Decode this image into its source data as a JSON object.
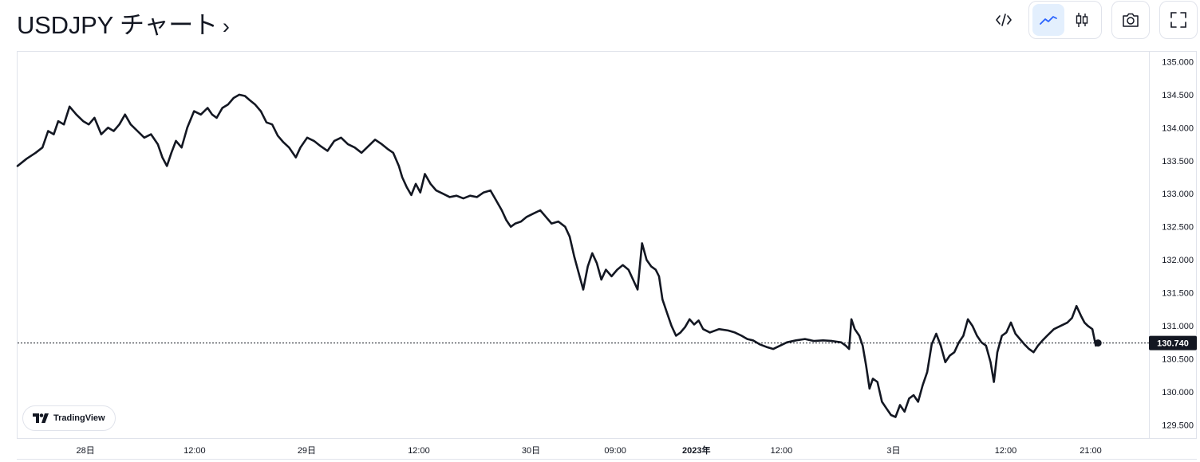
{
  "header": {
    "title": "USDJPY チャート",
    "title_chevron": "›"
  },
  "toolbar": {
    "embed_icon": "code-icon",
    "line_icon": "line-chart-icon",
    "candle_icon": "candlestick-icon",
    "snapshot_icon": "camera-icon",
    "fullscreen_icon": "fullscreen-icon",
    "active_chart_type": "line",
    "accent": "#2962ff"
  },
  "watermark": {
    "text": "TradingView"
  },
  "chart_data": {
    "type": "line",
    "title": "",
    "xlabel": "",
    "ylabel": "",
    "ylim": [
      129.3,
      135.15
    ],
    "line_color": "#131722",
    "grid": false,
    "y_axis": "right",
    "y_ticks": [
      "135.000",
      "134.500",
      "134.000",
      "133.500",
      "133.000",
      "132.500",
      "132.000",
      "131.500",
      "131.000",
      "130.500",
      "130.000",
      "129.500"
    ],
    "x_ticks": [
      {
        "label": "28日",
        "t": 0.06
      },
      {
        "label": "12:00",
        "t": 0.1565
      },
      {
        "label": "29日",
        "t": 0.2556
      },
      {
        "label": "12:00",
        "t": 0.3547
      },
      {
        "label": "30日",
        "t": 0.4538
      },
      {
        "label": "09:00",
        "t": 0.5283
      },
      {
        "label": "2023年",
        "t": 0.6,
        "bold": true
      },
      {
        "label": "12:00",
        "t": 0.6752
      },
      {
        "label": "3日",
        "t": 0.7743
      },
      {
        "label": "12:00",
        "t": 0.8734
      },
      {
        "label": "21:00",
        "t": 0.9485
      }
    ],
    "last_value": 130.74,
    "last_value_label": "130.740",
    "series": [
      {
        "points": [
          [
            0.0,
            133.42
          ],
          [
            0.008,
            133.53
          ],
          [
            0.016,
            133.62
          ],
          [
            0.022,
            133.7
          ],
          [
            0.027,
            133.95
          ],
          [
            0.032,
            133.9
          ],
          [
            0.036,
            134.1
          ],
          [
            0.041,
            134.05
          ],
          [
            0.046,
            134.32
          ],
          [
            0.052,
            134.2
          ],
          [
            0.058,
            134.1
          ],
          [
            0.063,
            134.05
          ],
          [
            0.068,
            134.15
          ],
          [
            0.074,
            133.9
          ],
          [
            0.08,
            134.0
          ],
          [
            0.085,
            133.95
          ],
          [
            0.09,
            134.05
          ],
          [
            0.095,
            134.2
          ],
          [
            0.1,
            134.05
          ],
          [
            0.106,
            133.95
          ],
          [
            0.112,
            133.85
          ],
          [
            0.118,
            133.9
          ],
          [
            0.124,
            133.75
          ],
          [
            0.128,
            133.55
          ],
          [
            0.132,
            133.42
          ],
          [
            0.136,
            133.62
          ],
          [
            0.14,
            133.8
          ],
          [
            0.145,
            133.7
          ],
          [
            0.15,
            134.0
          ],
          [
            0.156,
            134.25
          ],
          [
            0.162,
            134.2
          ],
          [
            0.168,
            134.3
          ],
          [
            0.172,
            134.2
          ],
          [
            0.176,
            134.15
          ],
          [
            0.181,
            134.3
          ],
          [
            0.186,
            134.35
          ],
          [
            0.191,
            134.45
          ],
          [
            0.196,
            134.5
          ],
          [
            0.201,
            134.48
          ],
          [
            0.205,
            134.42
          ],
          [
            0.21,
            134.35
          ],
          [
            0.215,
            134.25
          ],
          [
            0.22,
            134.08
          ],
          [
            0.225,
            134.05
          ],
          [
            0.23,
            133.88
          ],
          [
            0.235,
            133.78
          ],
          [
            0.24,
            133.7
          ],
          [
            0.246,
            133.55
          ],
          [
            0.25,
            133.7
          ],
          [
            0.256,
            133.85
          ],
          [
            0.262,
            133.8
          ],
          [
            0.268,
            133.72
          ],
          [
            0.274,
            133.65
          ],
          [
            0.28,
            133.8
          ],
          [
            0.286,
            133.85
          ],
          [
            0.292,
            133.75
          ],
          [
            0.298,
            133.7
          ],
          [
            0.304,
            133.62
          ],
          [
            0.31,
            133.72
          ],
          [
            0.316,
            133.82
          ],
          [
            0.322,
            133.75
          ],
          [
            0.327,
            133.68
          ],
          [
            0.332,
            133.62
          ],
          [
            0.337,
            133.42
          ],
          [
            0.34,
            133.25
          ],
          [
            0.344,
            133.1
          ],
          [
            0.348,
            132.98
          ],
          [
            0.352,
            133.15
          ],
          [
            0.356,
            133.02
          ],
          [
            0.36,
            133.3
          ],
          [
            0.365,
            133.15
          ],
          [
            0.37,
            133.05
          ],
          [
            0.376,
            133.0
          ],
          [
            0.382,
            132.95
          ],
          [
            0.388,
            132.97
          ],
          [
            0.394,
            132.93
          ],
          [
            0.4,
            132.97
          ],
          [
            0.406,
            132.95
          ],
          [
            0.412,
            133.02
          ],
          [
            0.418,
            133.05
          ],
          [
            0.423,
            132.9
          ],
          [
            0.428,
            132.75
          ],
          [
            0.432,
            132.6
          ],
          [
            0.436,
            132.5
          ],
          [
            0.44,
            132.55
          ],
          [
            0.445,
            132.58
          ],
          [
            0.45,
            132.65
          ],
          [
            0.456,
            132.7
          ],
          [
            0.462,
            132.75
          ],
          [
            0.467,
            132.65
          ],
          [
            0.472,
            132.55
          ],
          [
            0.478,
            132.58
          ],
          [
            0.484,
            132.5
          ],
          [
            0.488,
            132.35
          ],
          [
            0.492,
            132.05
          ],
          [
            0.496,
            131.8
          ],
          [
            0.5,
            131.55
          ],
          [
            0.504,
            131.9
          ],
          [
            0.508,
            132.1
          ],
          [
            0.512,
            131.95
          ],
          [
            0.516,
            131.7
          ],
          [
            0.52,
            131.85
          ],
          [
            0.525,
            131.75
          ],
          [
            0.53,
            131.85
          ],
          [
            0.535,
            131.92
          ],
          [
            0.54,
            131.85
          ],
          [
            0.544,
            131.7
          ],
          [
            0.548,
            131.55
          ],
          [
            0.552,
            132.25
          ],
          [
            0.556,
            132.0
          ],
          [
            0.56,
            131.9
          ],
          [
            0.564,
            131.85
          ],
          [
            0.567,
            131.75
          ],
          [
            0.57,
            131.4
          ],
          [
            0.574,
            131.2
          ],
          [
            0.578,
            131.0
          ],
          [
            0.582,
            130.85
          ],
          [
            0.586,
            130.9
          ],
          [
            0.59,
            130.98
          ],
          [
            0.594,
            131.1
          ],
          [
            0.598,
            131.02
          ],
          [
            0.602,
            131.08
          ],
          [
            0.606,
            130.95
          ],
          [
            0.612,
            130.9
          ],
          [
            0.62,
            130.95
          ],
          [
            0.628,
            130.93
          ],
          [
            0.634,
            130.9
          ],
          [
            0.64,
            130.85
          ],
          [
            0.645,
            130.8
          ],
          [
            0.65,
            130.78
          ],
          [
            0.656,
            130.72
          ],
          [
            0.662,
            130.68
          ],
          [
            0.668,
            130.65
          ],
          [
            0.674,
            130.7
          ],
          [
            0.68,
            130.75
          ],
          [
            0.688,
            130.78
          ],
          [
            0.696,
            130.8
          ],
          [
            0.704,
            130.77
          ],
          [
            0.712,
            130.78
          ],
          [
            0.72,
            130.77
          ],
          [
            0.728,
            130.75
          ],
          [
            0.732,
            130.7
          ],
          [
            0.735,
            130.65
          ],
          [
            0.737,
            131.1
          ],
          [
            0.74,
            130.95
          ],
          [
            0.744,
            130.85
          ],
          [
            0.747,
            130.7
          ],
          [
            0.75,
            130.4
          ],
          [
            0.753,
            130.05
          ],
          [
            0.756,
            130.2
          ],
          [
            0.76,
            130.15
          ],
          [
            0.764,
            129.85
          ],
          [
            0.768,
            129.75
          ],
          [
            0.772,
            129.65
          ],
          [
            0.776,
            129.62
          ],
          [
            0.78,
            129.8
          ],
          [
            0.784,
            129.7
          ],
          [
            0.788,
            129.9
          ],
          [
            0.792,
            129.95
          ],
          [
            0.796,
            129.85
          ],
          [
            0.8,
            130.1
          ],
          [
            0.804,
            130.3
          ],
          [
            0.808,
            130.72
          ],
          [
            0.812,
            130.88
          ],
          [
            0.816,
            130.7
          ],
          [
            0.82,
            130.45
          ],
          [
            0.824,
            130.55
          ],
          [
            0.828,
            130.6
          ],
          [
            0.832,
            130.75
          ],
          [
            0.836,
            130.85
          ],
          [
            0.84,
            131.1
          ],
          [
            0.844,
            131.0
          ],
          [
            0.848,
            130.85
          ],
          [
            0.852,
            130.75
          ],
          [
            0.856,
            130.7
          ],
          [
            0.86,
            130.45
          ],
          [
            0.863,
            130.15
          ],
          [
            0.866,
            130.6
          ],
          [
            0.87,
            130.85
          ],
          [
            0.874,
            130.9
          ],
          [
            0.878,
            131.05
          ],
          [
            0.882,
            130.88
          ],
          [
            0.886,
            130.8
          ],
          [
            0.89,
            130.72
          ],
          [
            0.894,
            130.65
          ],
          [
            0.898,
            130.6
          ],
          [
            0.902,
            130.7
          ],
          [
            0.906,
            130.78
          ],
          [
            0.91,
            130.85
          ],
          [
            0.916,
            130.95
          ],
          [
            0.922,
            131.0
          ],
          [
            0.928,
            131.05
          ],
          [
            0.932,
            131.12
          ],
          [
            0.936,
            131.3
          ],
          [
            0.94,
            131.15
          ],
          [
            0.943,
            131.05
          ],
          [
            0.946,
            131.0
          ],
          [
            0.95,
            130.95
          ],
          [
            0.953,
            130.7
          ],
          [
            0.955,
            130.74
          ]
        ]
      }
    ]
  }
}
